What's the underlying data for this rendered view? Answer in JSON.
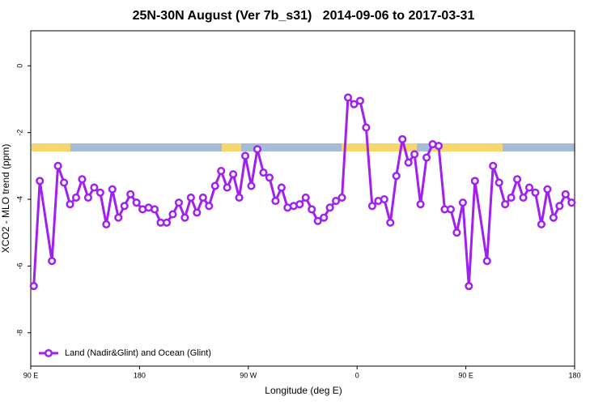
{
  "chart_data": {
    "type": "line",
    "title": "25N-30N August (Ver 7b_s31)   2014-09-06 to 2017-03-31",
    "xlabel": "Longitude (deg E)",
    "ylabel": "XCO2 - MLO trend (ppm)",
    "xlim": [
      90,
      540
    ],
    "ylim": [
      -9,
      1.05
    ],
    "xticks": [
      {
        "value": 90,
        "label": "90 E"
      },
      {
        "value": 180,
        "label": "180"
      },
      {
        "value": 270,
        "label": "90 W"
      },
      {
        "value": 360,
        "label": "0"
      },
      {
        "value": 450,
        "label": "90 E"
      },
      {
        "value": 540,
        "label": "180"
      }
    ],
    "yticks": [
      0,
      -2,
      -4,
      -6,
      -8
    ],
    "legend": "bottom-left",
    "x": [
      92.5,
      97.5,
      107.5,
      112.5,
      117.5,
      122.5,
      127.5,
      132.5,
      137.5,
      142.5,
      147.5,
      152.5,
      157.5,
      162.5,
      167.5,
      172.5,
      177.5,
      182.5,
      187.5,
      192.5,
      197.5,
      202.5,
      207.5,
      212.5,
      217.5,
      222.5,
      227.5,
      232.5,
      237.5,
      242.5,
      247.5,
      252.5,
      257.5,
      262.5,
      267.5,
      272.5,
      277.5,
      282.5,
      287.5,
      292.5,
      297.5,
      302.5,
      307.5,
      312.5,
      317.5,
      322.5,
      327.5,
      332.5,
      337.5,
      342.5,
      347.5,
      352.5,
      357.5,
      362.5,
      367.5,
      372.5,
      377.5,
      382.5,
      387.5,
      392.5,
      397.5,
      402.5,
      407.5,
      412.5,
      417.5,
      422.5,
      427.5,
      432.5,
      437.5,
      442.5,
      447.5,
      452.5,
      457.5,
      467.5,
      472.5,
      477.5,
      482.5,
      487.5,
      492.5,
      497.5,
      502.5,
      507.5,
      512.5,
      517.5,
      522.5,
      527.5,
      532.5,
      537.5
    ],
    "series": [
      {
        "name": "Land (Nadir&Glint) and Ocean (Glint)",
        "color": "#a020f0",
        "values": [
          -6.6,
          -3.45,
          -5.85,
          -3.0,
          -3.5,
          -4.15,
          -3.95,
          -3.4,
          -3.95,
          -3.65,
          -3.8,
          -4.75,
          -3.7,
          -4.55,
          -4.2,
          -3.85,
          -4.1,
          -4.3,
          -4.25,
          -4.3,
          -4.7,
          -4.7,
          -4.45,
          -4.1,
          -4.55,
          -3.95,
          -4.4,
          -3.95,
          -4.2,
          -3.6,
          -3.15,
          -3.65,
          -3.25,
          -3.95,
          -2.7,
          -3.6,
          -2.5,
          -3.2,
          -3.35,
          -4.05,
          -3.65,
          -4.25,
          -4.2,
          -4.15,
          -3.95,
          -4.3,
          -4.65,
          -4.55,
          -4.25,
          -4.05,
          -3.95,
          -0.95,
          -1.15,
          -1.05,
          -1.85,
          -4.2,
          -4.05,
          -4.0,
          -4.7,
          -3.3,
          -2.2,
          -2.9,
          -2.65,
          -4.15,
          -2.75,
          -2.35,
          -2.4,
          -4.3,
          -4.3,
          -5.0,
          -4.1,
          -6.6,
          -3.45,
          -5.85,
          -3.0,
          -3.5,
          -4.15,
          -3.95,
          -3.4,
          -3.95,
          -3.65,
          -3.8,
          -4.75,
          -3.7,
          -4.55,
          -4.2,
          -3.85,
          -4.1
        ]
      }
    ]
  }
}
